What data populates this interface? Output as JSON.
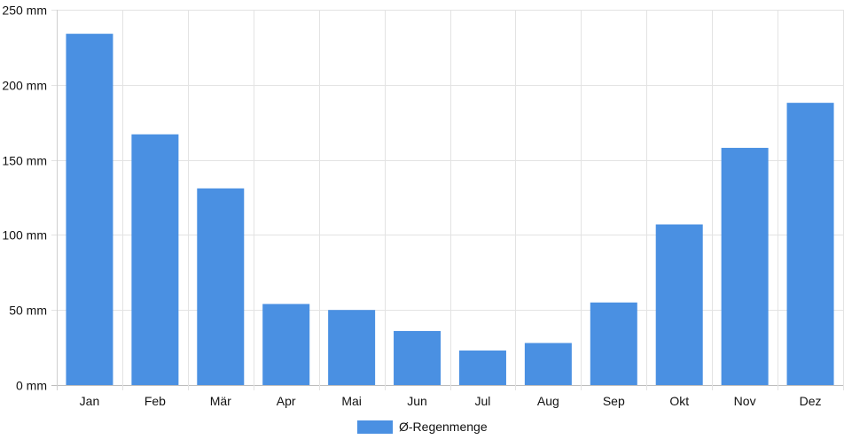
{
  "chart_data": {
    "type": "bar",
    "categories": [
      "Jan",
      "Feb",
      "Mär",
      "Apr",
      "Mai",
      "Jun",
      "Jul",
      "Aug",
      "Sep",
      "Okt",
      "Nov",
      "Dez"
    ],
    "series": [
      {
        "name": "Ø-Regenmenge",
        "values": [
          234,
          167,
          131,
          54,
          50,
          36,
          23,
          28,
          55,
          107,
          158,
          188
        ],
        "color": "#4a90e2"
      }
    ],
    "ylim": [
      0,
      250
    ],
    "y_ticks": [
      0,
      50,
      100,
      150,
      200,
      250
    ],
    "y_tick_labels": [
      "0 mm",
      "50 mm",
      "100 mm",
      "150 mm",
      "200 mm",
      "250 mm"
    ],
    "grid": true,
    "legend_position": "bottom-center"
  }
}
